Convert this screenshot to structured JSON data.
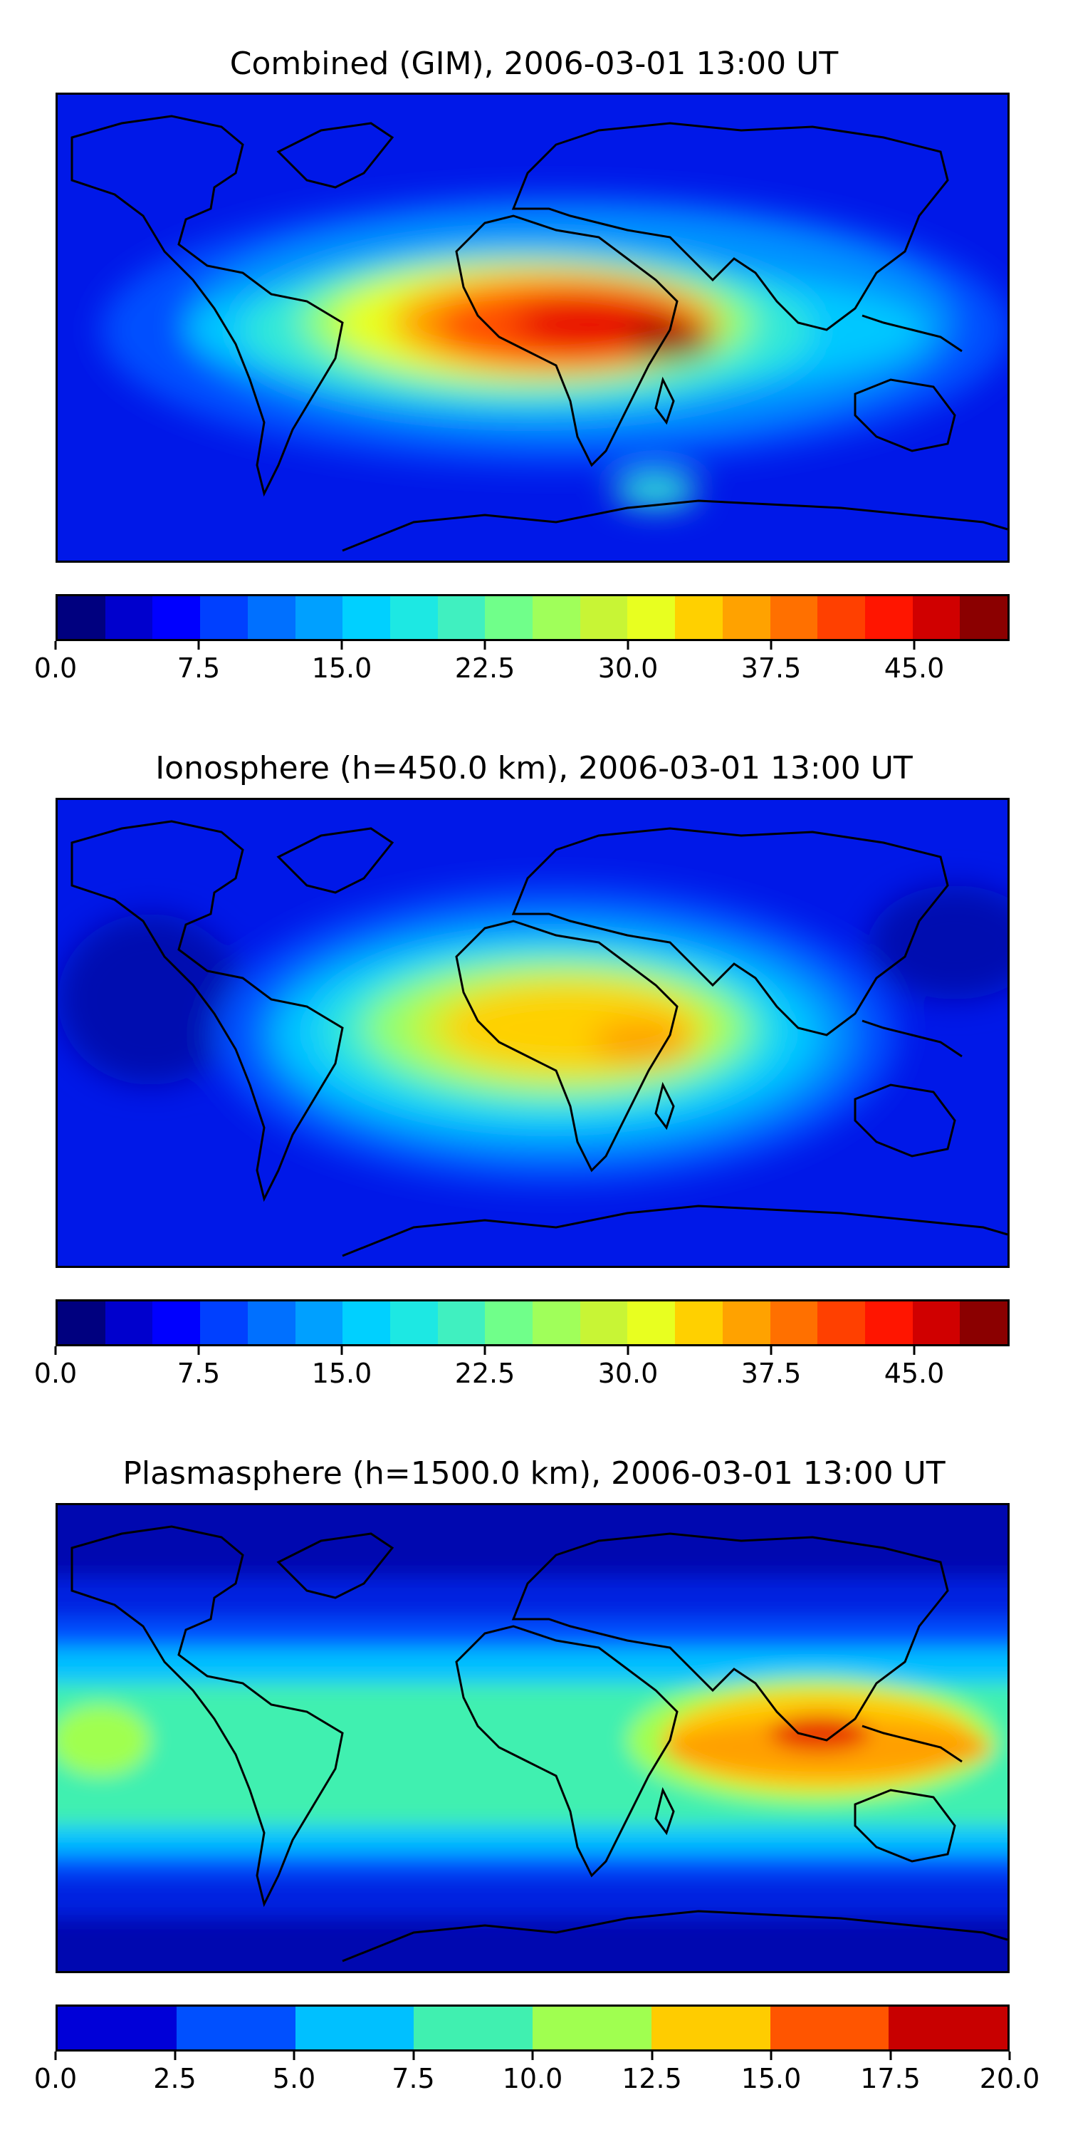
{
  "panels": [
    {
      "title": "Combined (GIM), 2006-03-01 13:00 UT",
      "colorbar": {
        "colors": [
          "#00007f",
          "#0000cd",
          "#0000ff",
          "#0040ff",
          "#0070ff",
          "#00a0ff",
          "#00d0ff",
          "#1de8e3",
          "#40f0c0",
          "#70ff8a",
          "#a0ff5a",
          "#c8f535",
          "#e8ff20",
          "#ffd000",
          "#ffa200",
          "#ff7000",
          "#ff4000",
          "#ff1500",
          "#d00000",
          "#8b0000"
        ],
        "ticks": [
          "0.0",
          "7.5",
          "15.0",
          "22.5",
          "30.0",
          "37.5",
          "45.0"
        ],
        "tick_values": [
          0,
          7.5,
          15,
          22.5,
          30,
          37.5,
          45
        ],
        "range": [
          0,
          50
        ]
      }
    },
    {
      "title": "Ionosphere  (h=450.0 km), 2006-03-01 13:00 UT",
      "colorbar": {
        "colors": [
          "#00007f",
          "#0000cd",
          "#0000ff",
          "#0040ff",
          "#0070ff",
          "#00a0ff",
          "#00d0ff",
          "#1de8e3",
          "#40f0c0",
          "#70ff8a",
          "#a0ff5a",
          "#c8f535",
          "#e8ff20",
          "#ffd000",
          "#ffa200",
          "#ff7000",
          "#ff4000",
          "#ff1500",
          "#d00000",
          "#8b0000"
        ],
        "ticks": [
          "0.0",
          "7.5",
          "15.0",
          "22.5",
          "30.0",
          "37.5",
          "45.0"
        ],
        "tick_values": [
          0,
          7.5,
          15,
          22.5,
          30,
          37.5,
          45
        ],
        "range": [
          0,
          50
        ]
      }
    },
    {
      "title": "Plasmasphere (h=1500.0 km), 2006-03-01 13:00 UT",
      "colorbar": {
        "colors": [
          "#0000d8",
          "#0050ff",
          "#00c0ff",
          "#40f0b0",
          "#a0ff50",
          "#ffcc00",
          "#ff5500",
          "#c80000"
        ],
        "ticks": [
          "0.0",
          "2.5",
          "5.0",
          "7.5",
          "10.0",
          "12.5",
          "15.0",
          "17.5",
          "20.0"
        ],
        "tick_values": [
          0,
          2.5,
          5,
          7.5,
          10,
          12.5,
          15,
          17.5,
          20
        ],
        "range": [
          0,
          20
        ]
      }
    }
  ]
}
